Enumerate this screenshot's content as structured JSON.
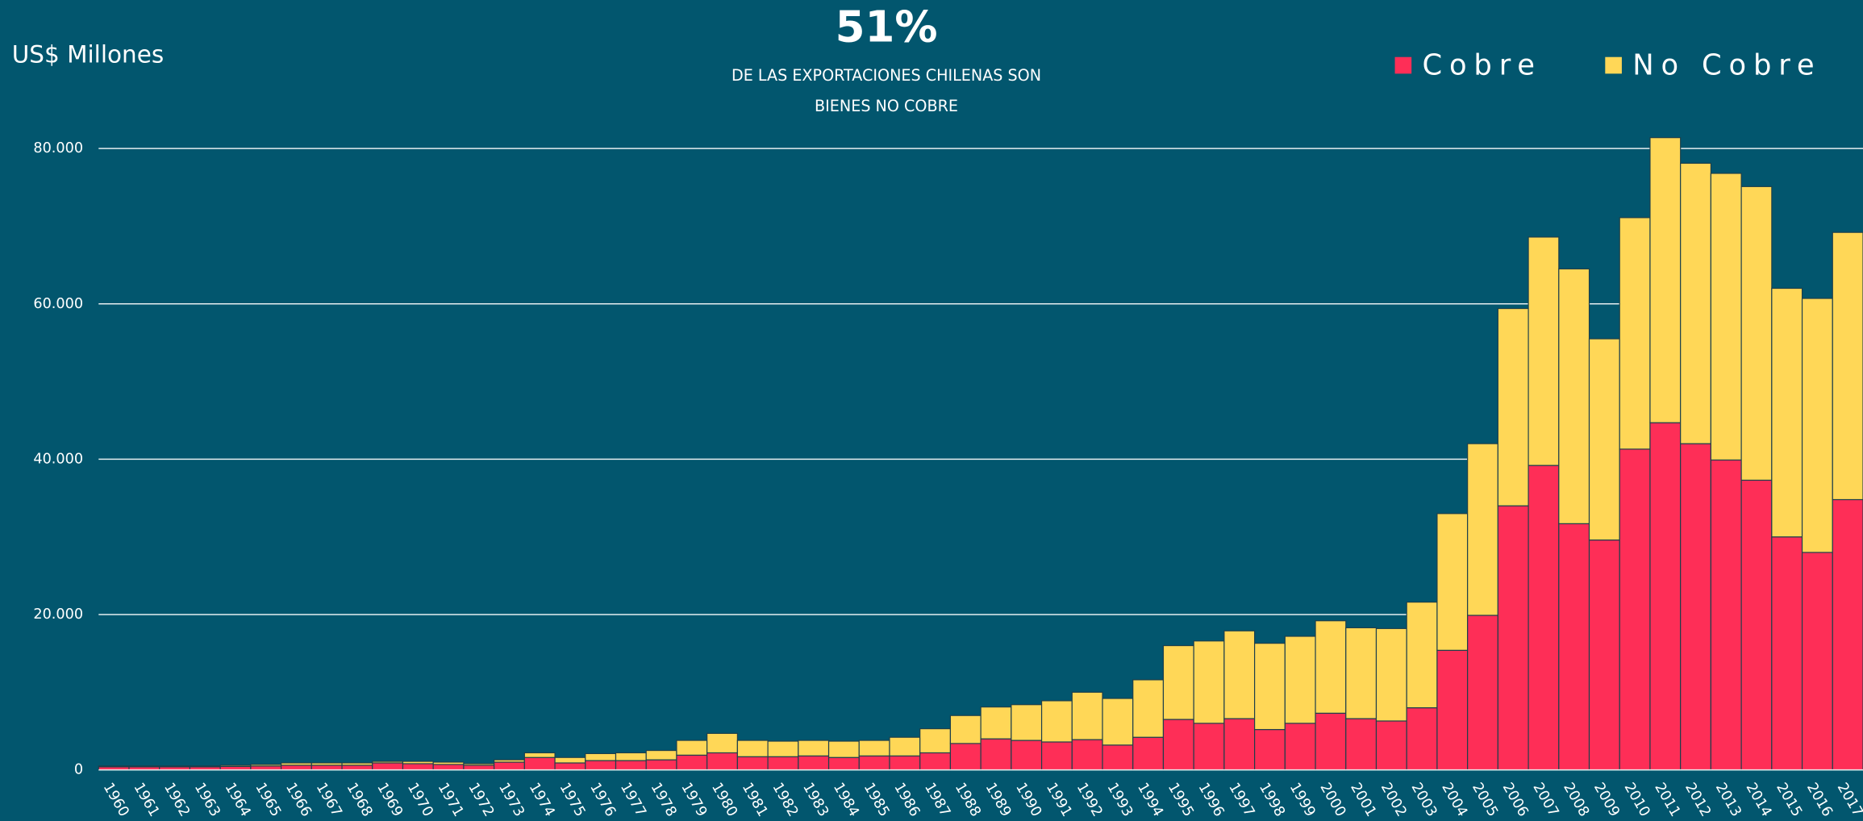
{
  "chart_data": {
    "type": "stacked_bar",
    "title": "51%",
    "subtitle": [
      "DE LAS EXPORTACIONES CHILENAS SON",
      "BIENES NO COBRE"
    ],
    "y_label": "US$ Millones",
    "categories": [
      "1960",
      "1961",
      "1962",
      "1963",
      "1964",
      "1965",
      "1966",
      "1967",
      "1968",
      "1969",
      "1970",
      "1971",
      "1972",
      "1973",
      "1974",
      "1975",
      "1976",
      "1977",
      "1978",
      "1979",
      "1980",
      "1981",
      "1982",
      "1983",
      "1984",
      "1985",
      "1986",
      "1987",
      "1988",
      "1989",
      "1990",
      "1991",
      "1992",
      "1993",
      "1994",
      "1995",
      "1996",
      "1997",
      "1998",
      "1999",
      "2000",
      "2001",
      "2002",
      "2003",
      "2004",
      "2005",
      "2006",
      "2007",
      "2008",
      "2009",
      "2010",
      "2011",
      "2012",
      "2013",
      "2014",
      "2015",
      "2016",
      "2017"
    ],
    "series": [
      {
        "name": "Cobre",
        "color": "#fe2e57",
        "values": [
          400,
          400,
          400,
          400,
          450,
          500,
          600,
          600,
          600,
          900,
          800,
          700,
          600,
          1000,
          1600,
          900,
          1200,
          1200,
          1300,
          1900,
          2200,
          1700,
          1700,
          1800,
          1600,
          1800,
          1800,
          2200,
          3400,
          4000,
          3800,
          3600,
          3900,
          3200,
          4200,
          6500,
          6000,
          6600,
          5200,
          6000,
          7300,
          6600,
          6300,
          8000,
          15400,
          19900,
          34000,
          39200,
          31700,
          29600,
          41300,
          44700,
          42000,
          39900,
          37300,
          30000,
          28000,
          34800
        ]
      },
      {
        "name": "No Cobre",
        "color": "#ffd757",
        "values": [
          100,
          100,
          100,
          100,
          150,
          200,
          300,
          300,
          300,
          200,
          300,
          300,
          200,
          300,
          600,
          700,
          900,
          1000,
          1200,
          1900,
          2500,
          2100,
          2000,
          2000,
          2100,
          2000,
          2400,
          3100,
          3600,
          4100,
          4600,
          5300,
          6100,
          6000,
          7400,
          9500,
          10600,
          11300,
          11100,
          11200,
          11900,
          11700,
          11900,
          13600,
          17600,
          22100,
          25400,
          29400,
          32800,
          25900,
          29800,
          36700,
          36100,
          36900,
          37800,
          32000,
          32700,
          34400
        ]
      }
    ],
    "ylim": [
      0,
      80000
    ],
    "yticks": [
      0,
      {
        "value": 20000,
        "label": "20.000"
      },
      {
        "value": 40000,
        "label": "40.000"
      },
      {
        "value": 60000,
        "label": "60.000"
      },
      {
        "value": 80000,
        "label": "80.000"
      }
    ],
    "grid": true,
    "legend": "top-right"
  }
}
